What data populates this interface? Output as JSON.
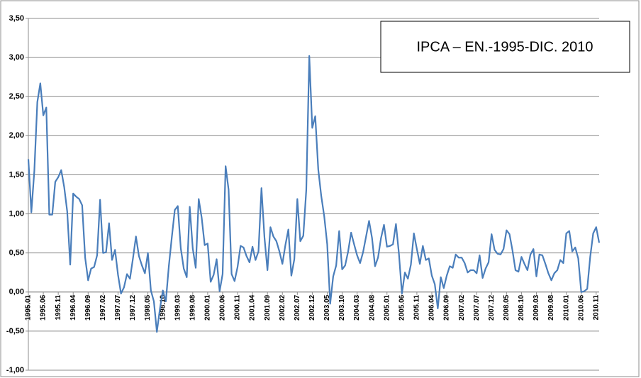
{
  "chart_data": {
    "type": "line",
    "title": "IPCA – EN.-1995-DIC. 2010",
    "categories": [
      "1995.01",
      null,
      null,
      null,
      null,
      "1995.06",
      null,
      null,
      null,
      null,
      "1995.11",
      null,
      null,
      null,
      null,
      "1996.04",
      null,
      null,
      null,
      null,
      "1996.09",
      null,
      null,
      null,
      null,
      "1997.02",
      null,
      null,
      null,
      null,
      "1997.07",
      null,
      null,
      null,
      null,
      "1997.12",
      null,
      null,
      null,
      null,
      "1998.05",
      null,
      null,
      null,
      null,
      "1998.10",
      null,
      null,
      null,
      null,
      "1999.03",
      null,
      null,
      null,
      null,
      "1999.08",
      null,
      null,
      null,
      null,
      "2000.01",
      null,
      null,
      null,
      null,
      "2000.06",
      null,
      null,
      null,
      null,
      "2000.11",
      null,
      null,
      null,
      null,
      "2001.04",
      null,
      null,
      null,
      null,
      "2001.09",
      null,
      null,
      null,
      null,
      "2002.02",
      null,
      null,
      null,
      null,
      "2002.07",
      null,
      null,
      null,
      null,
      "2002.12",
      null,
      null,
      null,
      null,
      "2003.05",
      null,
      null,
      null,
      null,
      "2003.10",
      null,
      null,
      null,
      null,
      "2004.03",
      null,
      null,
      null,
      null,
      "2004.08",
      null,
      null,
      null,
      null,
      "2005.01",
      null,
      null,
      null,
      null,
      "2005.06",
      null,
      null,
      null,
      null,
      "2005.11",
      null,
      null,
      null,
      null,
      "2006.04",
      null,
      null,
      null,
      null,
      "2006.09",
      null,
      null,
      null,
      null,
      "2007.02",
      null,
      null,
      null,
      null,
      "2007.07",
      null,
      null,
      null,
      null,
      "2007.12",
      null,
      null,
      null,
      null,
      "2008.05",
      null,
      null,
      null,
      null,
      "2008.10",
      null,
      null,
      null,
      null,
      "2009.03",
      null,
      null,
      null,
      null,
      "2009.08",
      null,
      null,
      null,
      null,
      "2010.01",
      null,
      null,
      null,
      null,
      "2010.06",
      null,
      null,
      null,
      null,
      "2010.11",
      null
    ],
    "series": [
      {
        "name": "IPCA",
        "color": "#4a7ebb",
        "values": [
          1.7,
          1.02,
          1.55,
          2.43,
          2.67,
          2.26,
          2.36,
          0.99,
          0.99,
          1.41,
          1.47,
          1.56,
          1.34,
          1.03,
          0.35,
          1.26,
          1.22,
          1.19,
          1.11,
          0.44,
          0.15,
          0.3,
          0.32,
          0.47,
          1.18,
          0.5,
          0.51,
          0.88,
          0.41,
          0.54,
          0.22,
          -0.02,
          0.06,
          0.23,
          0.17,
          0.43,
          0.71,
          0.46,
          0.34,
          0.24,
          0.5,
          0.02,
          -0.12,
          -0.51,
          -0.22,
          0.02,
          -0.12,
          0.33,
          0.7,
          1.05,
          1.1,
          0.56,
          0.3,
          0.19,
          1.09,
          0.56,
          0.31,
          1.19,
          0.95,
          0.6,
          0.62,
          0.13,
          0.22,
          0.42,
          0.01,
          0.23,
          1.61,
          1.31,
          0.23,
          0.14,
          0.32,
          0.59,
          0.57,
          0.46,
          0.38,
          0.58,
          0.41,
          0.52,
          1.33,
          0.7,
          0.28,
          0.83,
          0.71,
          0.65,
          0.52,
          0.36,
          0.6,
          0.8,
          0.21,
          0.42,
          1.19,
          0.65,
          0.72,
          1.31,
          3.02,
          2.1,
          2.25,
          1.57,
          1.23,
          0.97,
          0.61,
          -0.15,
          0.2,
          0.34,
          0.78,
          0.29,
          0.34,
          0.52,
          0.76,
          0.61,
          0.47,
          0.37,
          0.51,
          0.71,
          0.91,
          0.69,
          0.33,
          0.44,
          0.69,
          0.86,
          0.58,
          0.59,
          0.61,
          0.87,
          0.49,
          -0.02,
          0.25,
          0.17,
          0.35,
          0.75,
          0.55,
          0.36,
          0.59,
          0.41,
          0.43,
          0.21,
          0.1,
          -0.21,
          0.19,
          0.05,
          0.21,
          0.33,
          0.31,
          0.48,
          0.44,
          0.44,
          0.37,
          0.25,
          0.28,
          0.28,
          0.24,
          0.47,
          0.18,
          0.3,
          0.38,
          0.74,
          0.54,
          0.49,
          0.48,
          0.55,
          0.79,
          0.74,
          0.53,
          0.28,
          0.26,
          0.45,
          0.36,
          0.28,
          0.48,
          0.55,
          0.2,
          0.48,
          0.47,
          0.36,
          0.24,
          0.15,
          0.24,
          0.28,
          0.41,
          0.37,
          0.75,
          0.78,
          0.52,
          0.57,
          0.43,
          0.0,
          0.01,
          0.04,
          0.45,
          0.75,
          0.83,
          0.63
        ]
      }
    ],
    "ylim": [
      -1.0,
      3.5
    ],
    "yticks": [
      {
        "value": -1.0,
        "label": "-1,00"
      },
      {
        "value": -0.5,
        "label": "-0,50"
      },
      {
        "value": 0,
        "label": "0,00"
      },
      {
        "value": 0.5,
        "label": "0,50"
      },
      {
        "value": 1.0,
        "label": "1,00"
      },
      {
        "value": 1.5,
        "label": "1,50"
      },
      {
        "value": 2.0,
        "label": "2,00"
      },
      {
        "value": 2.5,
        "label": "2,50"
      },
      {
        "value": 3.0,
        "label": "3,00"
      },
      {
        "value": 3.5,
        "label": "3,50"
      }
    ],
    "grid": true
  }
}
